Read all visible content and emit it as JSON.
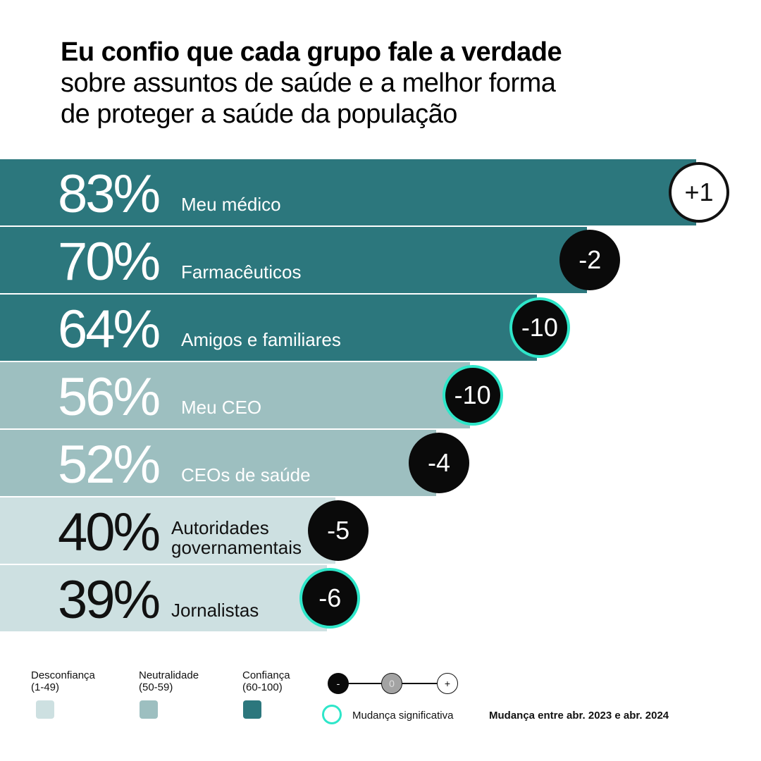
{
  "title": {
    "bold": "Eu confio que cada grupo fale a verdade",
    "line2": "sobre assuntos de saúde e a melhor forma",
    "line3": "de proteger a saúde da população"
  },
  "colors": {
    "trust": "#2c777d",
    "neutral": "#9dbfc0",
    "distrust": "#cde0e1",
    "significant": "#2ee6c9",
    "change_bg": "#0a0a0a"
  },
  "chart_data": {
    "type": "bar",
    "orientation": "horizontal",
    "unit": "%",
    "categories": [
      "Meu médico",
      "Farmacêuticos",
      "Amigos e familiares",
      "Meu CEO",
      "CEOs de saúde",
      "Autoridades governamentais",
      "Jornalistas"
    ],
    "values": [
      83,
      70,
      64,
      56,
      52,
      40,
      39
    ],
    "value_labels": [
      "83%",
      "70%",
      "64%",
      "56%",
      "52%",
      "40%",
      "39%"
    ],
    "label_lines": [
      [
        "Meu médico"
      ],
      [
        "Farmacêuticos"
      ],
      [
        "Amigos e familiares"
      ],
      [
        "Meu CEO"
      ],
      [
        "CEOs de saúde"
      ],
      [
        "Autoridades",
        "governamentais"
      ],
      [
        "Jornalistas"
      ]
    ],
    "trust_level": [
      "trust",
      "trust",
      "trust",
      "neutral",
      "neutral",
      "distrust",
      "distrust"
    ],
    "changes": [
      "+1",
      "-2",
      "-10",
      "-10",
      "-4",
      "-5",
      "-6"
    ],
    "change_values": [
      1,
      -2,
      -10,
      -10,
      -4,
      -5,
      -6
    ],
    "significant": [
      false,
      false,
      true,
      true,
      false,
      false,
      true
    ],
    "xlim": [
      0,
      100
    ]
  },
  "legend": {
    "distrust": {
      "label": "Desconfiança",
      "range": "(1-49)"
    },
    "neutral": {
      "label": "Neutralidade",
      "range": "(50-59)"
    },
    "trust": {
      "label": "Confiança",
      "range": "(60-100)"
    },
    "scale": {
      "minus": "-",
      "zero": "0",
      "plus": "+"
    },
    "significant_label": "Mudança significativa",
    "change_period": "Mudança entre abr. 2023 e abr. 2024"
  }
}
